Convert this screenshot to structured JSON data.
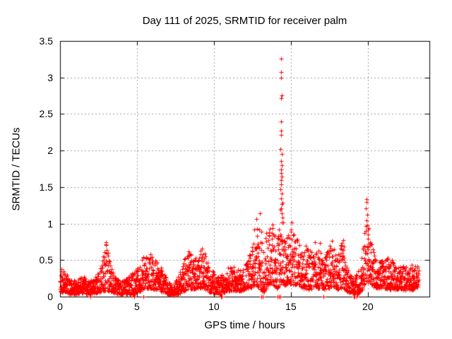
{
  "chart_data": {
    "type": "scatter",
    "title": "Day 111 of 2025, SRMTID for receiver palm",
    "xlabel": "GPS time / hours",
    "ylabel": "SRMTID / TECUs",
    "xlim": [
      0,
      24
    ],
    "ylim": [
      0,
      3.5
    ],
    "grid": true,
    "legend": "none",
    "x_ticks": [
      {
        "value": 0,
        "label": "0"
      },
      {
        "value": 5,
        "label": "5"
      },
      {
        "value": 10,
        "label": "10"
      },
      {
        "value": 15,
        "label": "15"
      },
      {
        "value": 20,
        "label": "20"
      }
    ],
    "y_ticks": [
      {
        "value": 0,
        "label": "0"
      },
      {
        "value": 0.5,
        "label": "0.5"
      },
      {
        "value": 1,
        "label": "1"
      },
      {
        "value": 1.5,
        "label": "1.5"
      },
      {
        "value": 2,
        "label": "2"
      },
      {
        "value": 2.5,
        "label": "2.5"
      },
      {
        "value": 3,
        "label": "3"
      },
      {
        "value": 3.5,
        "label": "3.5"
      }
    ],
    "colors": {
      "marker": "#ff0000",
      "grid": "#a0a0a0",
      "axis": "#000000",
      "background": "#ffffff",
      "text": "#000000"
    },
    "marker": "plus",
    "series": [
      {
        "name": "SRMTID",
        "points_per_hour": 115,
        "envelope": [
          [
            0.0,
            0.06,
            0.42
          ],
          [
            0.3,
            0.05,
            0.34
          ],
          [
            0.7,
            0.04,
            0.24
          ],
          [
            1.1,
            0.04,
            0.22
          ],
          [
            1.5,
            0.05,
            0.3
          ],
          [
            1.9,
            0.03,
            0.22
          ],
          [
            2.3,
            0.05,
            0.28
          ],
          [
            2.6,
            0.06,
            0.38
          ],
          [
            2.85,
            0.08,
            0.62
          ],
          [
            3.0,
            0.1,
            0.75
          ],
          [
            3.2,
            0.07,
            0.5
          ],
          [
            3.5,
            0.05,
            0.3
          ],
          [
            3.9,
            0.03,
            0.2
          ],
          [
            4.3,
            0.04,
            0.25
          ],
          [
            4.7,
            0.02,
            0.33
          ],
          [
            5.1,
            0.07,
            0.42
          ],
          [
            5.5,
            0.1,
            0.58
          ],
          [
            5.8,
            0.12,
            0.62
          ],
          [
            6.1,
            0.1,
            0.52
          ],
          [
            6.5,
            0.08,
            0.42
          ],
          [
            6.9,
            0.04,
            0.28
          ],
          [
            7.2,
            0.02,
            0.16
          ],
          [
            7.6,
            0.03,
            0.24
          ],
          [
            8.0,
            0.07,
            0.45
          ],
          [
            8.3,
            0.1,
            0.68
          ],
          [
            8.6,
            0.1,
            0.52
          ],
          [
            9.0,
            0.1,
            0.6
          ],
          [
            9.3,
            0.12,
            0.72
          ],
          [
            9.6,
            0.07,
            0.45
          ],
          [
            10.0,
            0.05,
            0.32
          ],
          [
            10.4,
            0.02,
            0.28
          ],
          [
            10.8,
            0.07,
            0.36
          ],
          [
            11.2,
            0.09,
            0.46
          ],
          [
            11.6,
            0.07,
            0.36
          ],
          [
            12.0,
            0.1,
            0.42
          ],
          [
            12.4,
            0.12,
            0.65
          ],
          [
            12.7,
            0.15,
            1.02
          ],
          [
            13.0,
            0.1,
            1.05
          ],
          [
            13.2,
            0.05,
            0.75
          ],
          [
            13.5,
            0.15,
            0.92
          ],
          [
            13.8,
            0.18,
            1.0
          ],
          [
            14.1,
            0.1,
            0.85
          ],
          [
            14.35,
            0.2,
            1.1
          ],
          [
            14.6,
            0.15,
            0.8
          ],
          [
            14.9,
            0.18,
            0.92
          ],
          [
            15.15,
            0.15,
            0.95
          ],
          [
            15.45,
            0.18,
            0.8
          ],
          [
            15.75,
            0.12,
            0.68
          ],
          [
            16.05,
            0.1,
            0.72
          ],
          [
            16.45,
            0.1,
            0.58
          ],
          [
            16.9,
            0.12,
            0.76
          ],
          [
            17.3,
            0.1,
            0.58
          ],
          [
            17.7,
            0.14,
            0.8
          ],
          [
            18.05,
            0.1,
            0.58
          ],
          [
            18.4,
            0.12,
            0.8
          ],
          [
            18.7,
            0.06,
            0.4
          ],
          [
            19.0,
            0.02,
            0.26
          ],
          [
            19.3,
            0.03,
            0.32
          ],
          [
            19.6,
            0.08,
            0.52
          ],
          [
            19.85,
            0.18,
            1.0
          ],
          [
            20.05,
            0.2,
            1.05
          ],
          [
            20.3,
            0.15,
            0.72
          ],
          [
            20.6,
            0.1,
            0.48
          ],
          [
            21.0,
            0.12,
            0.5
          ],
          [
            21.4,
            0.1,
            0.56
          ],
          [
            21.8,
            0.1,
            0.42
          ],
          [
            22.2,
            0.1,
            0.46
          ],
          [
            22.6,
            0.08,
            0.4
          ],
          [
            23.0,
            0.1,
            0.46
          ],
          [
            23.3,
            0.14,
            0.42
          ]
        ],
        "outliers": [
          [
            14.36,
            3.26
          ],
          [
            14.37,
            3.07
          ],
          [
            14.35,
            3.0
          ],
          [
            14.39,
            2.76
          ],
          [
            14.36,
            2.72
          ],
          [
            14.37,
            2.4
          ],
          [
            14.35,
            2.27
          ],
          [
            14.38,
            2.21
          ],
          [
            14.34,
            2.02
          ],
          [
            14.4,
            1.95
          ],
          [
            14.36,
            1.86
          ],
          [
            14.39,
            1.8
          ],
          [
            14.37,
            1.74
          ],
          [
            14.35,
            1.69
          ],
          [
            14.41,
            1.64
          ],
          [
            14.36,
            1.6
          ],
          [
            14.38,
            1.54
          ],
          [
            14.34,
            1.47
          ],
          [
            14.39,
            1.41
          ],
          [
            14.37,
            1.34
          ],
          [
            14.42,
            1.27
          ],
          [
            14.35,
            1.21
          ],
          [
            14.4,
            1.14
          ],
          [
            14.44,
            1.29
          ],
          [
            14.3,
            1.19
          ],
          [
            14.47,
            1.08
          ],
          [
            14.5,
            1.02
          ],
          [
            19.9,
            1.33
          ],
          [
            19.92,
            1.3
          ],
          [
            19.88,
            1.21
          ],
          [
            19.94,
            1.12
          ],
          [
            19.91,
            1.04
          ],
          [
            19.96,
            0.98
          ],
          [
            19.87,
            0.9
          ],
          [
            20.0,
            0.92
          ],
          [
            20.02,
            0.85
          ],
          [
            12.98,
            1.14
          ],
          [
            12.78,
            1.06
          ],
          [
            15.05,
            1.02
          ],
          [
            16.55,
            0.74
          ]
        ],
        "zero_value_times": [
          1.98,
          4.82,
          5.43,
          10.45,
          10.52,
          13.1,
          13.17,
          14.15,
          14.22,
          14.3,
          17.12,
          19.08,
          19.15,
          19.28
        ]
      }
    ]
  }
}
